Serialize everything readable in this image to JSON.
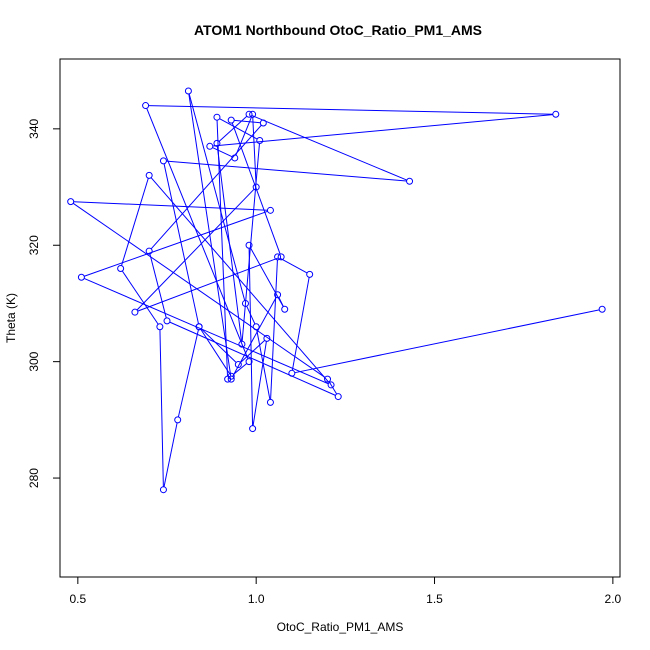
{
  "chart_data": {
    "type": "line",
    "title": "ATOM1 Northbound OtoC_Ratio_PM1_AMS",
    "xlabel": "OtoC_Ratio_PM1_AMS",
    "ylabel": "Theta (K)",
    "xlim": [
      0.45,
      2.02
    ],
    "ylim": [
      263,
      352
    ],
    "xticks": [
      0.5,
      1.0,
      1.5,
      2.0
    ],
    "xtick_labels": [
      "0.5",
      "1.0",
      "1.5",
      "2.0"
    ],
    "yticks": [
      280,
      300,
      320,
      340
    ],
    "ytick_labels": [
      "280",
      "300",
      "320",
      "340"
    ],
    "grid": false,
    "series_color": "#0000ff",
    "series": [
      {
        "x": [
          1.97,
          1.1,
          1.15,
          1.06,
          1.04,
          1.0,
          0.97,
          0.81,
          0.93,
          1.06,
          1.08,
          0.98,
          0.99,
          1.03,
          0.95,
          0.84,
          0.78,
          0.74,
          0.73,
          0.62,
          0.7,
          1.21,
          0.51,
          1.04,
          0.48,
          1.2,
          1.23,
          0.75,
          0.7,
          1.02,
          0.93,
          1.07,
          0.66,
          1.0,
          0.99,
          0.94,
          0.87,
          1.84,
          0.69,
          0.98,
          0.93,
          0.84,
          0.74,
          1.43,
          0.98,
          0.89,
          0.96,
          1.01,
          0.89,
          0.92
        ],
        "y": [
          309,
          298,
          315,
          318,
          293,
          306,
          310,
          346.5,
          297,
          311.5,
          309,
          320,
          288.5,
          304,
          299.5,
          306,
          290,
          278,
          306,
          316,
          332,
          296,
          314.5,
          326,
          327.5,
          297,
          294,
          307,
          319,
          341,
          341.5,
          318,
          308.5,
          330,
          342.5,
          335,
          337,
          342.5,
          344,
          300,
          297.5,
          306,
          334.5,
          331,
          342.5,
          337.5,
          303,
          338,
          342,
          297
        ]
      }
    ]
  }
}
